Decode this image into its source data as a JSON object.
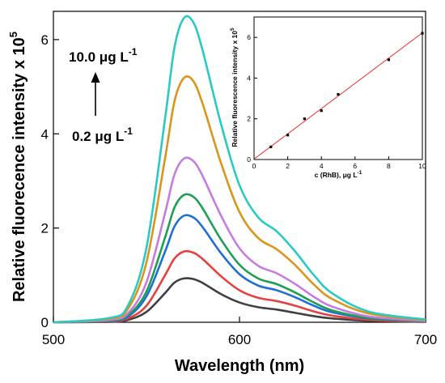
{
  "chart_data": [
    {
      "type": "line",
      "xlabel": "Wavelength (nm)",
      "ylabel": "Relative fluorecence intensity x 10",
      "ylabel_exponent": "5",
      "xlim": [
        500,
        700
      ],
      "ylim": [
        0,
        6.6
      ],
      "xticks": [
        "500",
        "600",
        "700"
      ],
      "yticks": [
        "0",
        "2",
        "4",
        "6"
      ],
      "annotations": {
        "top_label": "10.0 μg L",
        "top_exp": "-1",
        "bottom_label": "0.2 μg L",
        "bottom_exp": "-1"
      },
      "x": [
        500,
        530,
        540,
        550,
        560,
        565,
        570,
        575,
        580,
        590,
        600,
        610,
        620,
        630,
        640,
        650,
        670,
        700
      ],
      "series": [
        {
          "color": "#404040",
          "values": [
            0,
            0.01,
            0.05,
            0.22,
            0.62,
            0.84,
            0.93,
            0.92,
            0.84,
            0.6,
            0.42,
            0.32,
            0.27,
            0.2,
            0.13,
            0.08,
            0.03,
            0.01
          ]
        },
        {
          "color": "#e8403f",
          "values": [
            0,
            0.02,
            0.08,
            0.35,
            1.0,
            1.35,
            1.5,
            1.48,
            1.35,
            0.98,
            0.68,
            0.52,
            0.45,
            0.35,
            0.23,
            0.14,
            0.05,
            0.015
          ]
        },
        {
          "color": "#1f6fd6",
          "values": [
            0,
            0.03,
            0.12,
            0.55,
            1.5,
            2.03,
            2.26,
            2.23,
            2.03,
            1.47,
            1.02,
            0.78,
            0.68,
            0.53,
            0.35,
            0.21,
            0.08,
            0.02
          ]
        },
        {
          "color": "#1e9e55",
          "values": [
            0,
            0.04,
            0.15,
            0.65,
            1.8,
            2.43,
            2.7,
            2.67,
            2.43,
            1.76,
            1.22,
            0.93,
            0.81,
            0.63,
            0.42,
            0.25,
            0.09,
            0.025
          ]
        },
        {
          "color": "#c57be0",
          "values": [
            0,
            0.05,
            0.19,
            0.85,
            2.32,
            3.13,
            3.47,
            3.43,
            3.12,
            2.27,
            1.57,
            1.2,
            1.04,
            0.81,
            0.54,
            0.33,
            0.12,
            0.03
          ]
        },
        {
          "color": "#d9951c",
          "values": [
            0,
            0.07,
            0.28,
            1.27,
            3.48,
            4.68,
            5.18,
            5.13,
            4.66,
            3.39,
            2.34,
            1.79,
            1.55,
            1.21,
            0.8,
            0.49,
            0.18,
            0.05
          ]
        },
        {
          "color": "#2ac9c4",
          "values": [
            0,
            0.09,
            0.35,
            1.58,
            4.32,
            5.82,
            6.45,
            6.38,
            5.8,
            4.22,
            2.91,
            2.23,
            1.93,
            1.5,
            1.0,
            0.61,
            0.22,
            0.06
          ]
        }
      ]
    },
    {
      "type": "scatter",
      "xlabel": "c (RhB), μg L",
      "xlabel_exponent": "-1",
      "ylabel": "Relative fluorescence intensity x 10",
      "ylabel_exponent": "5",
      "xlim": [
        0,
        10
      ],
      "ylim": [
        0,
        7
      ],
      "xticks": [
        "0",
        "2",
        "4",
        "6",
        "8",
        "10"
      ],
      "yticks": [
        "0",
        "2",
        "4",
        "6"
      ],
      "points": [
        {
          "x": 1,
          "y": 0.62
        },
        {
          "x": 2,
          "y": 1.2
        },
        {
          "x": 3,
          "y": 2.0
        },
        {
          "x": 4,
          "y": 2.4
        },
        {
          "x": 5,
          "y": 3.2
        },
        {
          "x": 8,
          "y": 4.9
        },
        {
          "x": 10,
          "y": 6.2
        }
      ],
      "fit_line": {
        "x": [
          0,
          10
        ],
        "y": [
          0.02,
          6.22
        ],
        "color": "#e8403f"
      }
    }
  ]
}
